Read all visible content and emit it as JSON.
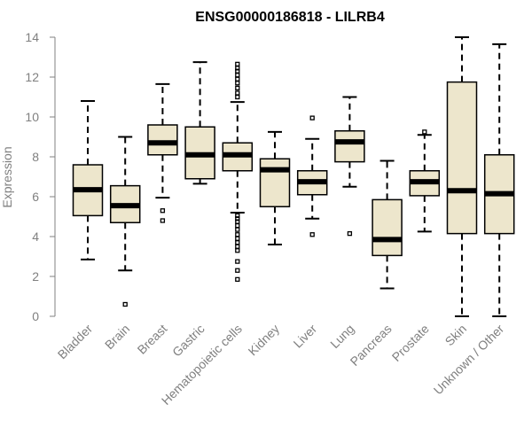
{
  "chart_data": {
    "type": "boxplot",
    "title": "ENSG00000186818 - LILRB4",
    "xlabel": "",
    "ylabel": "Expression",
    "ylim": [
      0,
      14
    ],
    "yticks": [
      0,
      2,
      4,
      6,
      8,
      10,
      12,
      14
    ],
    "box_fill": "#EDE6CC",
    "axis_color": "#808080",
    "categories": [
      "Bladder",
      "Brain",
      "Breast",
      "Gastric",
      "Hematopoietic cells",
      "Kidney",
      "Liver",
      "Lung",
      "Pancreas",
      "Prostate",
      "Skin",
      "Unknown / Other"
    ],
    "boxes": [
      {
        "name": "Bladder",
        "whisker_low": 2.85,
        "q1": 5.05,
        "median": 6.35,
        "q3": 7.6,
        "whisker_high": 10.8,
        "outliers": []
      },
      {
        "name": "Brain",
        "whisker_low": 2.3,
        "q1": 4.7,
        "median": 5.55,
        "q3": 6.55,
        "whisker_high": 9.0,
        "outliers": [
          0.6
        ]
      },
      {
        "name": "Breast",
        "whisker_low": 5.95,
        "q1": 8.1,
        "median": 8.7,
        "q3": 9.6,
        "whisker_high": 11.65,
        "outliers": [
          5.3,
          4.8
        ]
      },
      {
        "name": "Gastric",
        "whisker_low": 6.65,
        "q1": 6.9,
        "median": 8.1,
        "q3": 9.5,
        "whisker_high": 12.75,
        "outliers": []
      },
      {
        "name": "Hematopoietic cells",
        "whisker_low": 5.2,
        "q1": 7.3,
        "median": 8.1,
        "q3": 8.7,
        "whisker_high": 10.75,
        "outliers": [
          12.65,
          12.45,
          12.3,
          12.1,
          11.9,
          11.7,
          11.45,
          11.2,
          11.0,
          5.05,
          4.9,
          4.75,
          4.55,
          4.35,
          4.1,
          3.9,
          3.7,
          3.5,
          3.3,
          2.75,
          2.3,
          1.85
        ]
      },
      {
        "name": "Kidney",
        "whisker_low": 3.6,
        "q1": 5.5,
        "median": 7.35,
        "q3": 7.9,
        "whisker_high": 9.25,
        "outliers": []
      },
      {
        "name": "Liver",
        "whisker_low": 4.9,
        "q1": 6.1,
        "median": 6.75,
        "q3": 7.3,
        "whisker_high": 8.9,
        "outliers": [
          9.95,
          4.1
        ]
      },
      {
        "name": "Lung",
        "whisker_low": 6.5,
        "q1": 7.75,
        "median": 8.75,
        "q3": 9.3,
        "whisker_high": 11.0,
        "outliers": [
          4.15
        ]
      },
      {
        "name": "Pancreas",
        "whisker_low": 1.4,
        "q1": 3.05,
        "median": 3.85,
        "q3": 5.85,
        "whisker_high": 7.8,
        "outliers": []
      },
      {
        "name": "Prostate",
        "whisker_low": 4.25,
        "q1": 6.05,
        "median": 6.75,
        "q3": 7.3,
        "whisker_high": 9.1,
        "outliers": [
          9.25
        ]
      },
      {
        "name": "Skin",
        "whisker_low": 0.0,
        "q1": 4.15,
        "median": 6.3,
        "q3": 11.75,
        "whisker_high": 14.0,
        "outliers": []
      },
      {
        "name": "Unknown / Other",
        "whisker_low": 0.0,
        "q1": 4.15,
        "median": 6.15,
        "q3": 8.1,
        "whisker_high": 13.65,
        "outliers": []
      }
    ]
  }
}
